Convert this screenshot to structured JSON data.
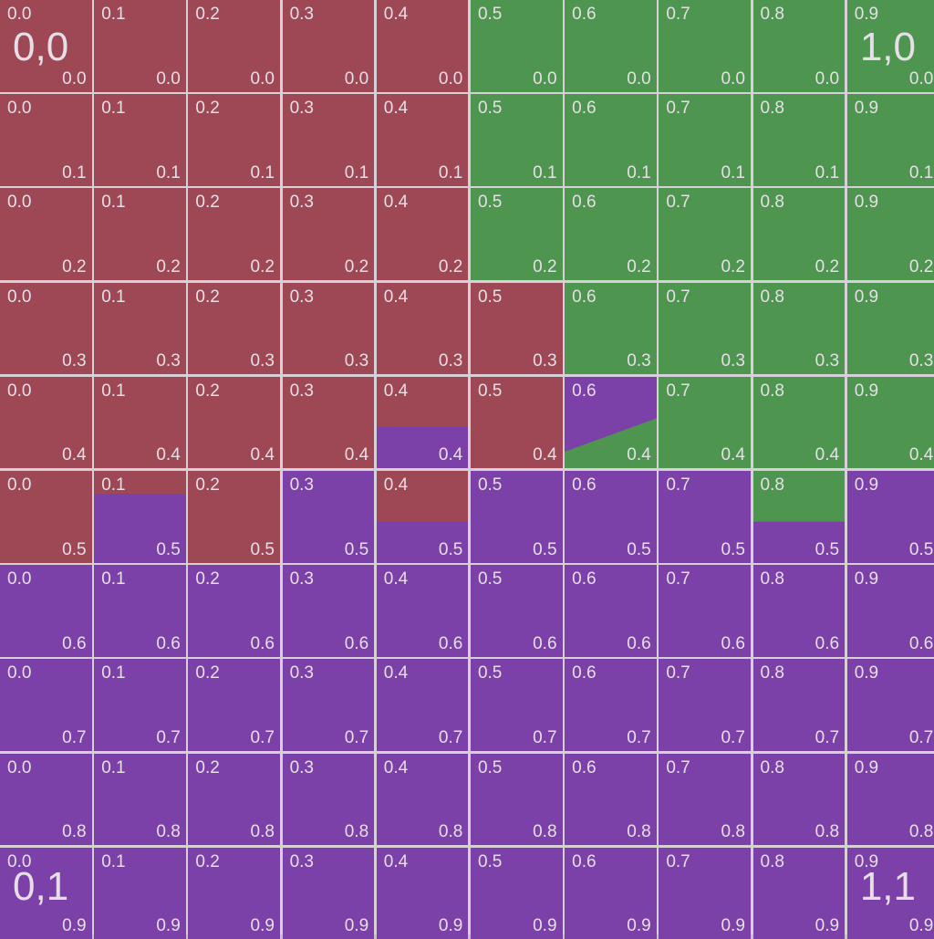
{
  "colors": {
    "red": "#9e4855",
    "green": "#4e9650",
    "purple": "#7c41a8",
    "grid_line": "#d8d0d8",
    "label": "#e7dfe7"
  },
  "x_labels": [
    "0.0",
    "0.1",
    "0.2",
    "0.3",
    "0.4",
    "0.5",
    "0.6",
    "0.7",
    "0.8",
    "0.9"
  ],
  "y_labels": [
    "0.0",
    "0.1",
    "0.2",
    "0.3",
    "0.4",
    "0.5",
    "0.6",
    "0.7",
    "0.8",
    "0.9"
  ],
  "corners": {
    "top_left": "0,0",
    "top_right": "1,0",
    "bottom_left": "0,1",
    "bottom_right": "1,1"
  },
  "region_grid": [
    [
      "red",
      "red",
      "red",
      "red",
      "red",
      "green",
      "green",
      "green",
      "green",
      "green"
    ],
    [
      "red",
      "red",
      "red",
      "red",
      "red",
      "green",
      "green",
      "green",
      "green",
      "green"
    ],
    [
      "red",
      "red",
      "red",
      "red",
      "red",
      "green",
      "green",
      "green",
      "green",
      "green"
    ],
    [
      "red",
      "red",
      "red",
      "red",
      "red",
      "red",
      "green",
      "green",
      "green",
      "green"
    ],
    [
      "red",
      "red",
      "red",
      "red",
      "red-purple",
      "red",
      "purple-green",
      "green",
      "green",
      "green"
    ],
    [
      "red",
      "purple-red",
      "red",
      "purple",
      "red-purple",
      "purple",
      "purple",
      "purple",
      "green-purple",
      "purple"
    ],
    [
      "purple",
      "purple",
      "purple",
      "purple",
      "purple",
      "purple",
      "purple",
      "purple",
      "purple",
      "purple"
    ],
    [
      "purple",
      "purple",
      "purple",
      "purple",
      "purple",
      "purple",
      "purple",
      "purple",
      "purple",
      "purple"
    ],
    [
      "purple",
      "purple",
      "purple",
      "purple",
      "purple",
      "purple",
      "purple",
      "purple",
      "purple",
      "purple"
    ],
    [
      "purple",
      "purple",
      "purple",
      "purple",
      "purple",
      "purple",
      "purple",
      "purple",
      "purple",
      "purple"
    ]
  ]
}
